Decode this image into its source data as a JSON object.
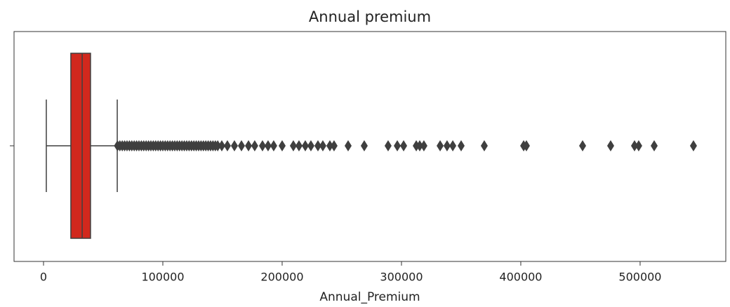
{
  "chart_data": {
    "type": "box",
    "orientation": "horizontal",
    "title": "Annual premium",
    "x_label": "Annual_Premium",
    "color": "#d1281d",
    "line_color": "#3f3f3f",
    "xlim": [
      -24700,
      571800
    ],
    "xticks": [
      0,
      100000,
      200000,
      300000,
      400000,
      500000
    ],
    "boxes": [
      {
        "min": 2350,
        "q1": 22900,
        "median": 32400,
        "q3": 39400,
        "max": 61800,
        "outliers": [
          62000,
          64000,
          66000,
          68000,
          70000,
          72000,
          74000,
          76000,
          78000,
          80000,
          82000,
          84000,
          86000,
          88000,
          90000,
          92000,
          94000,
          96000,
          98000,
          100000,
          102000,
          104000,
          106000,
          108000,
          110000,
          112000,
          114000,
          116000,
          118000,
          120000,
          122000,
          124000,
          126000,
          128000,
          130000,
          132000,
          134000,
          136000,
          138000,
          140000,
          142000,
          144000,
          146000,
          149400,
          154100,
          160000,
          165900,
          171800,
          177000,
          183500,
          188200,
          192900,
          200000,
          209400,
          214100,
          219400,
          224100,
          230000,
          234100,
          240000,
          243500,
          255300,
          268800,
          288800,
          296500,
          301800,
          312400,
          315300,
          318800,
          332400,
          338200,
          343000,
          350000,
          369400,
          402400,
          404700,
          451800,
          475300,
          495300,
          498800,
          511800,
          544700
        ]
      }
    ]
  }
}
